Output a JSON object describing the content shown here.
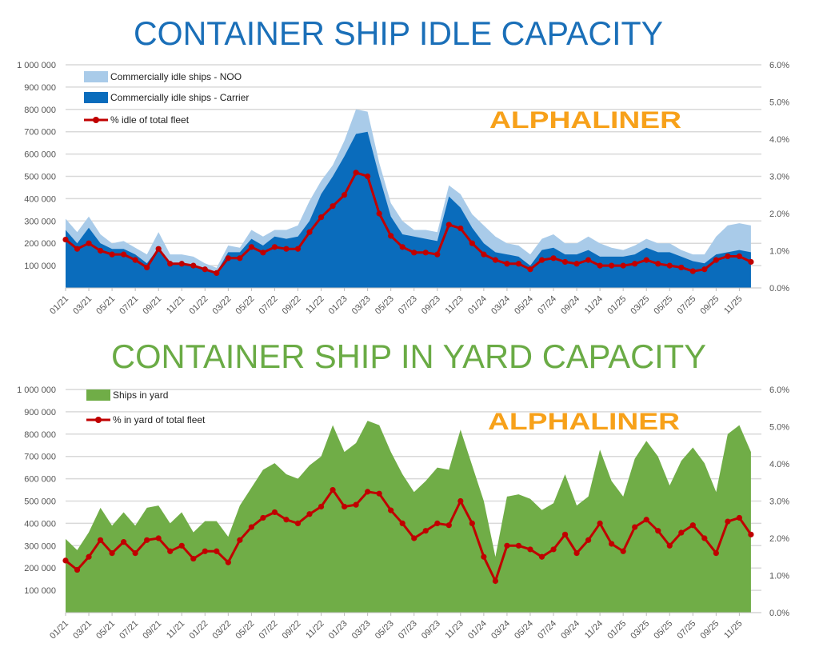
{
  "chart_data": [
    {
      "type": "area",
      "title": "CONTAINER SHIP IDLE CAPACITY",
      "title_color": "#1a6fb8",
      "watermark": "ALPHALINER",
      "x": [
        "01/21",
        "02/21",
        "03/21",
        "04/21",
        "05/21",
        "06/21",
        "07/21",
        "08/21",
        "09/21",
        "10/21",
        "11/21",
        "12/21",
        "01/22",
        "02/22",
        "03/22",
        "04/22",
        "05/22",
        "06/22",
        "07/22",
        "08/22",
        "09/22",
        "10/22",
        "11/22",
        "12/22",
        "01/23",
        "02/23",
        "03/23",
        "04/23",
        "05/23",
        "06/23",
        "07/23",
        "08/23",
        "09/23",
        "10/23",
        "11/23",
        "12/23",
        "01/24",
        "02/24",
        "03/24",
        "04/24",
        "05/24",
        "06/24",
        "07/24",
        "08/24",
        "09/24",
        "10/24",
        "11/24",
        "12/24",
        "01/25",
        "02/25",
        "03/25",
        "04/25",
        "05/25",
        "06/25",
        "07/25",
        "08/25",
        "09/25",
        "10/25",
        "11/25",
        "12/25"
      ],
      "x_tick_labels": [
        "01/21",
        "03/21",
        "05/21",
        "07/21",
        "09/21",
        "11/21",
        "01/22",
        "03/22",
        "05/22",
        "07/22",
        "09/22",
        "11/22",
        "01/23",
        "03/23",
        "05/23",
        "07/23",
        "09/23",
        "11/23",
        "01/24",
        "03/24",
        "05/24",
        "07/24",
        "09/24",
        "11/24",
        "01/25",
        "03/25",
        "05/25",
        "07/25",
        "09/25",
        "11/25"
      ],
      "y_left": {
        "range": [
          0,
          1000000
        ],
        "ticks": [
          "100 000",
          "200 000",
          "300 000",
          "400 000",
          "500 000",
          "600 000",
          "700 000",
          "800 000",
          "900 000",
          "1 000 000"
        ]
      },
      "y_right": {
        "range": [
          0,
          6
        ],
        "ticks": [
          "0.0%",
          "1.0%",
          "2.0%",
          "3.0%",
          "4.0%",
          "5.0%",
          "6.0%"
        ]
      },
      "grid": true,
      "legend_position": "top-left",
      "series": [
        {
          "name": "Commercially idle ships - NOO",
          "kind": "stacked-area-total",
          "color": "#a9cbe9",
          "axis": "left",
          "values": [
            310000,
            250000,
            320000,
            240000,
            200000,
            210000,
            180000,
            150000,
            250000,
            150000,
            150000,
            140000,
            110000,
            90000,
            190000,
            180000,
            260000,
            230000,
            260000,
            260000,
            280000,
            390000,
            480000,
            550000,
            660000,
            800000,
            790000,
            560000,
            380000,
            300000,
            260000,
            260000,
            250000,
            460000,
            420000,
            330000,
            280000,
            230000,
            200000,
            190000,
            150000,
            220000,
            240000,
            200000,
            200000,
            230000,
            200000,
            180000,
            170000,
            190000,
            220000,
            200000,
            200000,
            170000,
            150000,
            150000,
            230000,
            280000,
            290000,
            280000
          ]
        },
        {
          "name": "Commercially idle ships - Carrier",
          "kind": "area",
          "color": "#0a6cbc",
          "axis": "left",
          "values": [
            260000,
            200000,
            270000,
            200000,
            175000,
            175000,
            150000,
            110000,
            180000,
            110000,
            110000,
            100000,
            80000,
            70000,
            160000,
            160000,
            220000,
            190000,
            230000,
            220000,
            230000,
            300000,
            420000,
            500000,
            590000,
            690000,
            700000,
            500000,
            320000,
            240000,
            230000,
            220000,
            210000,
            410000,
            360000,
            270000,
            200000,
            160000,
            150000,
            140000,
            100000,
            170000,
            180000,
            150000,
            150000,
            170000,
            140000,
            140000,
            140000,
            150000,
            180000,
            160000,
            160000,
            140000,
            120000,
            110000,
            150000,
            160000,
            170000,
            160000
          ]
        },
        {
          "name": "% idle of total fleet",
          "kind": "line",
          "color": "#c00000",
          "axis": "right",
          "values": [
            1.3,
            1.05,
            1.2,
            1.0,
            0.9,
            0.9,
            0.75,
            0.55,
            1.05,
            0.65,
            0.65,
            0.6,
            0.5,
            0.4,
            0.8,
            0.8,
            1.1,
            0.95,
            1.1,
            1.05,
            1.05,
            1.5,
            1.9,
            2.2,
            2.5,
            3.1,
            3.0,
            2.0,
            1.4,
            1.1,
            0.95,
            0.95,
            0.9,
            1.7,
            1.6,
            1.2,
            0.9,
            0.75,
            0.65,
            0.65,
            0.5,
            0.75,
            0.8,
            0.7,
            0.65,
            0.75,
            0.6,
            0.6,
            0.6,
            0.65,
            0.75,
            0.65,
            0.6,
            0.55,
            0.45,
            0.5,
            0.75,
            0.85,
            0.85,
            0.7
          ]
        }
      ]
    },
    {
      "type": "area",
      "title": "CONTAINER SHIP IN YARD CAPACITY",
      "title_color": "#6aab45",
      "watermark": "ALPHALINER",
      "x": [
        "01/21",
        "02/21",
        "03/21",
        "04/21",
        "05/21",
        "06/21",
        "07/21",
        "08/21",
        "09/21",
        "10/21",
        "11/21",
        "12/21",
        "01/22",
        "02/22",
        "03/22",
        "04/22",
        "05/22",
        "06/22",
        "07/22",
        "08/22",
        "09/22",
        "10/22",
        "11/22",
        "12/22",
        "01/23",
        "02/23",
        "03/23",
        "04/23",
        "05/23",
        "06/23",
        "07/23",
        "08/23",
        "09/23",
        "10/23",
        "11/23",
        "12/23",
        "01/24",
        "02/24",
        "03/24",
        "04/24",
        "05/24",
        "06/24",
        "07/24",
        "08/24",
        "09/24",
        "10/24",
        "11/24",
        "12/24",
        "01/25",
        "02/25",
        "03/25",
        "04/25",
        "05/25",
        "06/25",
        "07/25",
        "08/25",
        "09/25",
        "10/25",
        "11/25",
        "12/25"
      ],
      "x_tick_labels": [
        "01/21",
        "03/21",
        "05/21",
        "07/21",
        "09/21",
        "11/21",
        "01/22",
        "03/22",
        "05/22",
        "07/22",
        "09/22",
        "11/22",
        "01/23",
        "03/23",
        "05/23",
        "07/23",
        "09/23",
        "11/23",
        "01/24",
        "03/24",
        "05/24",
        "07/24",
        "09/24",
        "11/24",
        "01/25",
        "03/25",
        "05/25",
        "07/25",
        "09/25",
        "11/25"
      ],
      "y_left": {
        "range": [
          0,
          1000000
        ],
        "ticks": [
          "100 000",
          "200 000",
          "300 000",
          "400 000",
          "500 000",
          "600 000",
          "700 000",
          "800 000",
          "900 000",
          "1 000 000"
        ]
      },
      "y_right": {
        "range": [
          0,
          6
        ],
        "ticks": [
          "0.0%",
          "1.0%",
          "2.0%",
          "3.0%",
          "4.0%",
          "5.0%",
          "6.0%"
        ]
      },
      "grid": true,
      "legend_position": "top-left",
      "series": [
        {
          "name": "Ships in yard",
          "kind": "area",
          "color": "#70ad47",
          "axis": "left",
          "values": [
            330000,
            280000,
            360000,
            470000,
            390000,
            450000,
            390000,
            470000,
            480000,
            400000,
            450000,
            360000,
            410000,
            410000,
            340000,
            480000,
            560000,
            640000,
            670000,
            620000,
            600000,
            660000,
            700000,
            840000,
            720000,
            760000,
            860000,
            840000,
            720000,
            620000,
            540000,
            590000,
            650000,
            640000,
            820000,
            660000,
            500000,
            250000,
            520000,
            530000,
            510000,
            460000,
            490000,
            620000,
            480000,
            520000,
            730000,
            590000,
            520000,
            690000,
            770000,
            700000,
            570000,
            680000,
            740000,
            670000,
            540000,
            800000,
            840000,
            720000
          ]
        },
        {
          "name": "% in yard of total fleet",
          "kind": "line",
          "color": "#c00000",
          "axis": "right",
          "values": [
            1.4,
            1.15,
            1.5,
            1.95,
            1.6,
            1.9,
            1.6,
            1.95,
            2.0,
            1.65,
            1.8,
            1.45,
            1.65,
            1.65,
            1.35,
            1.95,
            2.3,
            2.55,
            2.7,
            2.5,
            2.4,
            2.65,
            2.85,
            3.3,
            2.85,
            2.9,
            3.25,
            3.2,
            2.75,
            2.4,
            2.0,
            2.2,
            2.4,
            2.35,
            3.0,
            2.4,
            1.5,
            0.85,
            1.8,
            1.8,
            1.7,
            1.5,
            1.7,
            2.1,
            1.6,
            1.95,
            2.4,
            1.85,
            1.65,
            2.3,
            2.5,
            2.2,
            1.8,
            2.15,
            2.35,
            2.0,
            1.6,
            2.45,
            2.55,
            2.1
          ]
        }
      ]
    }
  ]
}
